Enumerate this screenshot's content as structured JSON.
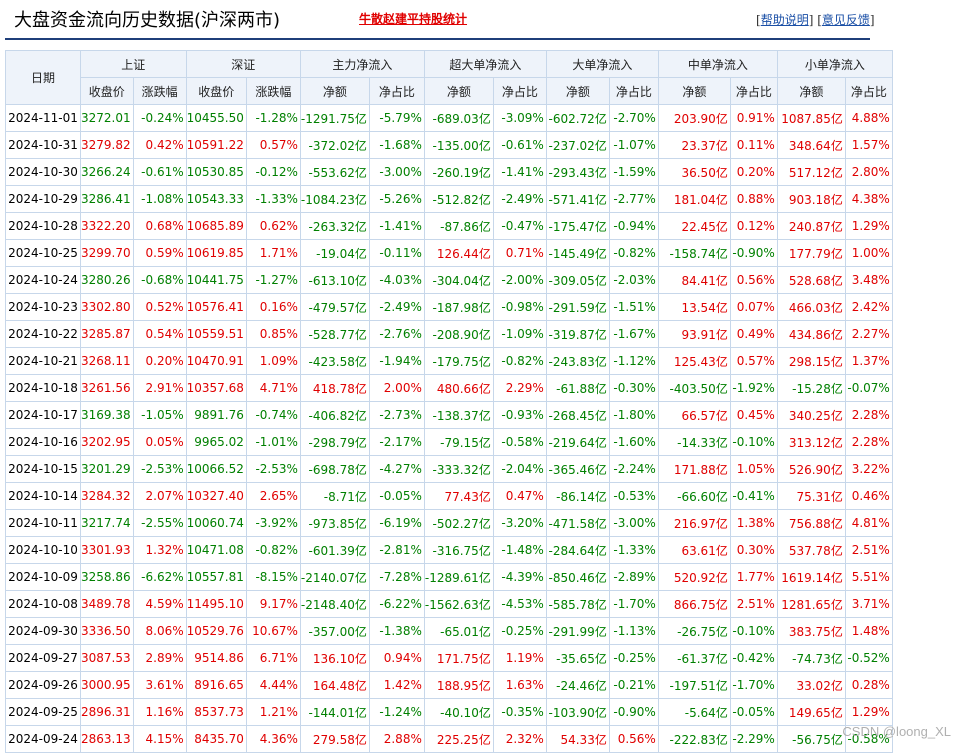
{
  "header": {
    "title": "大盘资金流向历史数据(沪深两市)",
    "promo_link": "牛散赵建平持股统计",
    "help_link": "帮助说明",
    "feedback_link": "意见反馈"
  },
  "table": {
    "date_header": "日期",
    "groups": [
      "上证",
      "深证",
      "主力净流入",
      "超大单净流入",
      "大单净流入",
      "中单净流入",
      "小单净流入"
    ],
    "sub_headers": [
      "收盘价",
      "涨跌幅",
      "收盘价",
      "涨跌幅",
      "净额",
      "净占比",
      "净额",
      "净占比",
      "净额",
      "净占比",
      "净额",
      "净占比",
      "净额",
      "净占比"
    ],
    "rows": [
      [
        "2024-11-01",
        "3272.01",
        "-0.24%",
        "10455.50",
        "-1.28%",
        "-1291.75亿",
        "-5.79%",
        "-689.03亿",
        "-3.09%",
        "-602.72亿",
        "-2.70%",
        "203.90亿",
        "0.91%",
        "1087.85亿",
        "4.88%"
      ],
      [
        "2024-10-31",
        "3279.82",
        "0.42%",
        "10591.22",
        "0.57%",
        "-372.02亿",
        "-1.68%",
        "-135.00亿",
        "-0.61%",
        "-237.02亿",
        "-1.07%",
        "23.37亿",
        "0.11%",
        "348.64亿",
        "1.57%"
      ],
      [
        "2024-10-30",
        "3266.24",
        "-0.61%",
        "10530.85",
        "-0.12%",
        "-553.62亿",
        "-3.00%",
        "-260.19亿",
        "-1.41%",
        "-293.43亿",
        "-1.59%",
        "36.50亿",
        "0.20%",
        "517.12亿",
        "2.80%"
      ],
      [
        "2024-10-29",
        "3286.41",
        "-1.08%",
        "10543.33",
        "-1.33%",
        "-1084.23亿",
        "-5.26%",
        "-512.82亿",
        "-2.49%",
        "-571.41亿",
        "-2.77%",
        "181.04亿",
        "0.88%",
        "903.18亿",
        "4.38%"
      ],
      [
        "2024-10-28",
        "3322.20",
        "0.68%",
        "10685.89",
        "0.62%",
        "-263.32亿",
        "-1.41%",
        "-87.86亿",
        "-0.47%",
        "-175.47亿",
        "-0.94%",
        "22.45亿",
        "0.12%",
        "240.87亿",
        "1.29%"
      ],
      [
        "2024-10-25",
        "3299.70",
        "0.59%",
        "10619.85",
        "1.71%",
        "-19.04亿",
        "-0.11%",
        "126.44亿",
        "0.71%",
        "-145.49亿",
        "-0.82%",
        "-158.74亿",
        "-0.90%",
        "177.79亿",
        "1.00%"
      ],
      [
        "2024-10-24",
        "3280.26",
        "-0.68%",
        "10441.75",
        "-1.27%",
        "-613.10亿",
        "-4.03%",
        "-304.04亿",
        "-2.00%",
        "-309.05亿",
        "-2.03%",
        "84.41亿",
        "0.56%",
        "528.68亿",
        "3.48%"
      ],
      [
        "2024-10-23",
        "3302.80",
        "0.52%",
        "10576.41",
        "0.16%",
        "-479.57亿",
        "-2.49%",
        "-187.98亿",
        "-0.98%",
        "-291.59亿",
        "-1.51%",
        "13.54亿",
        "0.07%",
        "466.03亿",
        "2.42%"
      ],
      [
        "2024-10-22",
        "3285.87",
        "0.54%",
        "10559.51",
        "0.85%",
        "-528.77亿",
        "-2.76%",
        "-208.90亿",
        "-1.09%",
        "-319.87亿",
        "-1.67%",
        "93.91亿",
        "0.49%",
        "434.86亿",
        "2.27%"
      ],
      [
        "2024-10-21",
        "3268.11",
        "0.20%",
        "10470.91",
        "1.09%",
        "-423.58亿",
        "-1.94%",
        "-179.75亿",
        "-0.82%",
        "-243.83亿",
        "-1.12%",
        "125.43亿",
        "0.57%",
        "298.15亿",
        "1.37%"
      ],
      [
        "2024-10-18",
        "3261.56",
        "2.91%",
        "10357.68",
        "4.71%",
        "418.78亿",
        "2.00%",
        "480.66亿",
        "2.29%",
        "-61.88亿",
        "-0.30%",
        "-403.50亿",
        "-1.92%",
        "-15.28亿",
        "-0.07%"
      ],
      [
        "2024-10-17",
        "3169.38",
        "-1.05%",
        "9891.76",
        "-0.74%",
        "-406.82亿",
        "-2.73%",
        "-138.37亿",
        "-0.93%",
        "-268.45亿",
        "-1.80%",
        "66.57亿",
        "0.45%",
        "340.25亿",
        "2.28%"
      ],
      [
        "2024-10-16",
        "3202.95",
        "0.05%",
        "9965.02",
        "-1.01%",
        "-298.79亿",
        "-2.17%",
        "-79.15亿",
        "-0.58%",
        "-219.64亿",
        "-1.60%",
        "-14.33亿",
        "-0.10%",
        "313.12亿",
        "2.28%"
      ],
      [
        "2024-10-15",
        "3201.29",
        "-2.53%",
        "10066.52",
        "-2.53%",
        "-698.78亿",
        "-4.27%",
        "-333.32亿",
        "-2.04%",
        "-365.46亿",
        "-2.24%",
        "171.88亿",
        "1.05%",
        "526.90亿",
        "3.22%"
      ],
      [
        "2024-10-14",
        "3284.32",
        "2.07%",
        "10327.40",
        "2.65%",
        "-8.71亿",
        "-0.05%",
        "77.43亿",
        "0.47%",
        "-86.14亿",
        "-0.53%",
        "-66.60亿",
        "-0.41%",
        "75.31亿",
        "0.46%"
      ],
      [
        "2024-10-11",
        "3217.74",
        "-2.55%",
        "10060.74",
        "-3.92%",
        "-973.85亿",
        "-6.19%",
        "-502.27亿",
        "-3.20%",
        "-471.58亿",
        "-3.00%",
        "216.97亿",
        "1.38%",
        "756.88亿",
        "4.81%"
      ],
      [
        "2024-10-10",
        "3301.93",
        "1.32%",
        "10471.08",
        "-0.82%",
        "-601.39亿",
        "-2.81%",
        "-316.75亿",
        "-1.48%",
        "-284.64亿",
        "-1.33%",
        "63.61亿",
        "0.30%",
        "537.78亿",
        "2.51%"
      ],
      [
        "2024-10-09",
        "3258.86",
        "-6.62%",
        "10557.81",
        "-8.15%",
        "-2140.07亿",
        "-7.28%",
        "-1289.61亿",
        "-4.39%",
        "-850.46亿",
        "-2.89%",
        "520.92亿",
        "1.77%",
        "1619.14亿",
        "5.51%"
      ],
      [
        "2024-10-08",
        "3489.78",
        "4.59%",
        "11495.10",
        "9.17%",
        "-2148.40亿",
        "-6.22%",
        "-1562.63亿",
        "-4.53%",
        "-585.78亿",
        "-1.70%",
        "866.75亿",
        "2.51%",
        "1281.65亿",
        "3.71%"
      ],
      [
        "2024-09-30",
        "3336.50",
        "8.06%",
        "10529.76",
        "10.67%",
        "-357.00亿",
        "-1.38%",
        "-65.01亿",
        "-0.25%",
        "-291.99亿",
        "-1.13%",
        "-26.75亿",
        "-0.10%",
        "383.75亿",
        "1.48%"
      ],
      [
        "2024-09-27",
        "3087.53",
        "2.89%",
        "9514.86",
        "6.71%",
        "136.10亿",
        "0.94%",
        "171.75亿",
        "1.19%",
        "-35.65亿",
        "-0.25%",
        "-61.37亿",
        "-0.42%",
        "-74.73亿",
        "-0.52%"
      ],
      [
        "2024-09-26",
        "3000.95",
        "3.61%",
        "8916.65",
        "4.44%",
        "164.48亿",
        "1.42%",
        "188.95亿",
        "1.63%",
        "-24.46亿",
        "-0.21%",
        "-197.51亿",
        "-1.70%",
        "33.02亿",
        "0.28%"
      ],
      [
        "2024-09-25",
        "2896.31",
        "1.16%",
        "8537.73",
        "1.21%",
        "-144.01亿",
        "-1.24%",
        "-40.10亿",
        "-0.35%",
        "-103.90亿",
        "-0.90%",
        "-5.64亿",
        "-0.05%",
        "149.65亿",
        "1.29%"
      ],
      [
        "2024-09-24",
        "2863.13",
        "4.15%",
        "8435.70",
        "4.36%",
        "279.58亿",
        "2.88%",
        "225.25亿",
        "2.32%",
        "54.33亿",
        "0.56%",
        "-222.83亿",
        "-2.29%",
        "-56.75亿",
        "-0.58%"
      ]
    ]
  },
  "colors": {
    "up": "#e00000",
    "down": "#008000",
    "header_bg": "#eef3fa",
    "border": "#c7d7ea",
    "rule": "#1f3f7a"
  },
  "watermark": "CSDN @loong_XL"
}
